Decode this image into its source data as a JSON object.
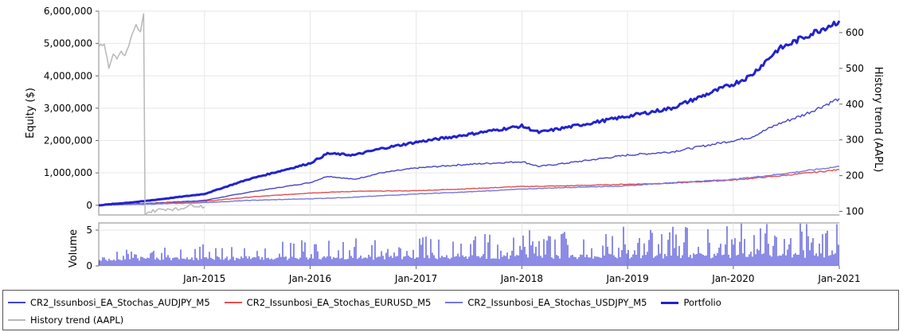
{
  "chart_data": [
    {
      "type": "line",
      "panel": "equity",
      "ylabel_left": "Equity ($)",
      "ylabel_right": "History trend (AAPL)",
      "xlim": [
        "2014-01-01",
        "2021-01-01"
      ],
      "ylim_left": [
        -300000,
        6000000
      ],
      "yticks_left": [
        "0",
        "1,000,000",
        "2,000,000",
        "3,000,000",
        "4,000,000",
        "5,000,000",
        "6,000,000"
      ],
      "ylim_right": [
        90,
        660
      ],
      "yticks_right": [
        "100",
        "200",
        "300",
        "400",
        "500",
        "600"
      ],
      "xticks": [
        "Jan-2015",
        "Jan-2016",
        "Jan-2017",
        "Jan-2018",
        "Jan-2019",
        "Jan-2020",
        "Jan-2021"
      ],
      "grid": true,
      "series": [
        {
          "name": "CR2_Issunbosi_EA_Stochas_AUDJPY_M5",
          "color": "#4444cc",
          "axis": "left",
          "points": [
            [
              "2014-01-01",
              0
            ],
            [
              "2014-06-01",
              50000
            ],
            [
              "2015-01-01",
              150000
            ],
            [
              "2015-06-01",
              400000
            ],
            [
              "2016-01-01",
              700000
            ],
            [
              "2016-03-01",
              900000
            ],
            [
              "2016-06-01",
              800000
            ],
            [
              "2016-09-01",
              1000000
            ],
            [
              "2017-01-01",
              1150000
            ],
            [
              "2017-06-01",
              1250000
            ],
            [
              "2018-01-01",
              1350000
            ],
            [
              "2018-03-01",
              1200000
            ],
            [
              "2018-06-01",
              1300000
            ],
            [
              "2019-01-01",
              1550000
            ],
            [
              "2019-06-01",
              1650000
            ],
            [
              "2020-01-01",
              2000000
            ],
            [
              "2020-03-01",
              2100000
            ],
            [
              "2020-06-01",
              2500000
            ],
            [
              "2020-09-01",
              2800000
            ],
            [
              "2021-01-01",
              3300000
            ]
          ]
        },
        {
          "name": "CR2_Issunbosi_EA_Stochas_EURUSD_M5",
          "color": "#e05050",
          "axis": "left",
          "points": [
            [
              "2014-01-01",
              0
            ],
            [
              "2014-06-01",
              40000
            ],
            [
              "2015-01-01",
              120000
            ],
            [
              "2015-06-01",
              250000
            ],
            [
              "2016-01-01",
              380000
            ],
            [
              "2016-06-01",
              430000
            ],
            [
              "2017-01-01",
              450000
            ],
            [
              "2017-06-01",
              500000
            ],
            [
              "2018-01-01",
              580000
            ],
            [
              "2018-06-01",
              600000
            ],
            [
              "2019-01-01",
              650000
            ],
            [
              "2019-06-01",
              680000
            ],
            [
              "2020-01-01",
              780000
            ],
            [
              "2020-06-01",
              900000
            ],
            [
              "2021-01-01",
              1100000
            ]
          ]
        },
        {
          "name": "CR2_Issunbosi_EA_Stochas_USDJPY_M5",
          "color": "#7777dd",
          "axis": "left",
          "points": [
            [
              "2014-01-01",
              0
            ],
            [
              "2014-06-01",
              30000
            ],
            [
              "2015-01-01",
              80000
            ],
            [
              "2015-06-01",
              150000
            ],
            [
              "2016-01-01",
              200000
            ],
            [
              "2016-06-01",
              250000
            ],
            [
              "2017-01-01",
              350000
            ],
            [
              "2017-06-01",
              400000
            ],
            [
              "2018-01-01",
              500000
            ],
            [
              "2018-06-01",
              550000
            ],
            [
              "2019-01-01",
              600000
            ],
            [
              "2019-06-01",
              700000
            ],
            [
              "2020-01-01",
              800000
            ],
            [
              "2020-06-01",
              950000
            ],
            [
              "2021-01-01",
              1200000
            ]
          ]
        },
        {
          "name": "Portfolio",
          "color": "#2222cc",
          "axis": "left",
          "bold": true,
          "points": [
            [
              "2014-01-01",
              0
            ],
            [
              "2014-06-01",
              120000
            ],
            [
              "2015-01-01",
              350000
            ],
            [
              "2015-06-01",
              800000
            ],
            [
              "2016-01-01",
              1300000
            ],
            [
              "2016-03-01",
              1600000
            ],
            [
              "2016-06-01",
              1550000
            ],
            [
              "2016-09-01",
              1750000
            ],
            [
              "2017-01-01",
              1950000
            ],
            [
              "2017-06-01",
              2150000
            ],
            [
              "2018-01-01",
              2450000
            ],
            [
              "2018-03-01",
              2250000
            ],
            [
              "2018-06-01",
              2400000
            ],
            [
              "2019-01-01",
              2750000
            ],
            [
              "2019-06-01",
              3000000
            ],
            [
              "2020-01-01",
              3750000
            ],
            [
              "2020-03-01",
              4000000
            ],
            [
              "2020-06-01",
              4800000
            ],
            [
              "2020-09-01",
              5200000
            ],
            [
              "2021-01-01",
              5700000
            ]
          ]
        },
        {
          "name": "History trend (AAPL)",
          "color": "#b8b8b8",
          "axis": "right",
          "points": [
            [
              "2014-01-01",
              560
            ],
            [
              "2014-01-20",
              570
            ],
            [
              "2014-02-05",
              500
            ],
            [
              "2014-02-20",
              540
            ],
            [
              "2014-03-05",
              530
            ],
            [
              "2014-03-20",
              545
            ],
            [
              "2014-04-01",
              535
            ],
            [
              "2014-04-15",
              560
            ],
            [
              "2014-04-25",
              590
            ],
            [
              "2014-05-10",
              620
            ],
            [
              "2014-05-25",
              600
            ],
            [
              "2014-06-05",
              650
            ],
            [
              "2014-06-10",
              95
            ],
            [
              "2014-07-01",
              100
            ],
            [
              "2014-08-01",
              105
            ],
            [
              "2014-09-01",
              108
            ],
            [
              "2014-10-01",
              105
            ],
            [
              "2014-11-01",
              115
            ],
            [
              "2014-12-01",
              118
            ],
            [
              "2015-01-01",
              112
            ]
          ]
        }
      ]
    },
    {
      "type": "bar",
      "panel": "volume",
      "ylabel": "Volume",
      "ylim": [
        0,
        6
      ],
      "yticks": [
        "0",
        "5"
      ],
      "grid": true,
      "series": [
        {
          "color": "#1a1acc"
        }
      ]
    }
  ]
}
